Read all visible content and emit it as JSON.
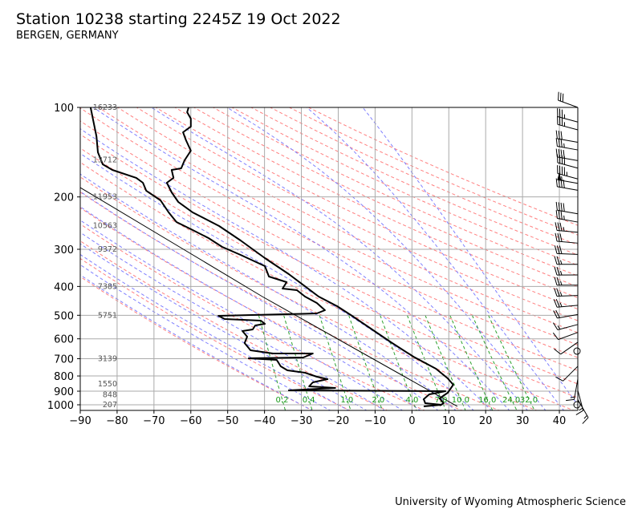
{
  "title": "Station 10238 starting 2245Z 19 Oct 2022",
  "subtitle": "BERGEN, GERMANY",
  "footer": "University of Wyoming Atmospheric Science",
  "chart_data": {
    "type": "line",
    "chart_kind": "skew-T log-P sounding",
    "xlim": [
      -90,
      45
    ],
    "ylim": [
      1050,
      100
    ],
    "y_scale": "log",
    "grid": true,
    "x_ticks": [
      -90,
      -80,
      -70,
      -60,
      -50,
      -40,
      -30,
      -20,
      -10,
      0,
      10,
      20,
      30,
      40
    ],
    "y_ticks": [
      100,
      200,
      300,
      400,
      500,
      600,
      700,
      800,
      900,
      1000
    ],
    "colors": {
      "temperature": "#000000",
      "dewpoint": "#000000",
      "parcel": "#000000",
      "dry_adiabat": "#ff7f7f",
      "moist_adiabat": "#7f7fff",
      "mixing_ratio": "#2ca02c",
      "grid": "#aaaaaa",
      "height_label": "#555555"
    },
    "temperature": [
      [
        100,
        -60.6
      ],
      [
        103.8,
        -61.0
      ],
      [
        109.1,
        -60.0
      ],
      [
        116.0,
        -60.0
      ],
      [
        121.2,
        -62.1
      ],
      [
        129.0,
        -61.3
      ],
      [
        139.8,
        -60.0
      ],
      [
        150.6,
        -61.7
      ],
      [
        160.3,
        -62.6
      ],
      [
        162.3,
        -65.2
      ],
      [
        172.6,
        -64.7
      ],
      [
        179.2,
        -66.5
      ],
      [
        193.1,
        -65.2
      ],
      [
        208.0,
        -63.4
      ],
      [
        225.5,
        -59.5
      ],
      [
        250.5,
        -52.3
      ],
      [
        280.2,
        -46.5
      ],
      [
        321.2,
        -39.9
      ],
      [
        363.6,
        -33.4
      ],
      [
        432.7,
        -25.3
      ],
      [
        466.1,
        -20.3
      ],
      [
        499.0,
        -16.6
      ],
      [
        616.3,
        -5.7
      ],
      [
        689.1,
        0.4
      ],
      [
        756.4,
        6.5
      ],
      [
        814.9,
        9.7
      ],
      [
        856.4,
        11.2
      ],
      [
        911.2,
        9.7
      ],
      [
        951.7,
        7.5
      ],
      [
        987.7,
        8.6
      ],
      [
        1006.2,
        7.5
      ]
    ],
    "dewpoint": [
      [
        100,
        -87.2
      ],
      [
        110.4,
        -86.5
      ],
      [
        125.0,
        -85.6
      ],
      [
        141.6,
        -85.2
      ],
      [
        155.4,
        -83.9
      ],
      [
        162.3,
        -81.3
      ],
      [
        172.6,
        -74.8
      ],
      [
        179.2,
        -73.0
      ],
      [
        190.6,
        -72.1
      ],
      [
        205.4,
        -68.2
      ],
      [
        225.5,
        -66.0
      ],
      [
        242.9,
        -63.9
      ],
      [
        258.5,
        -59.5
      ],
      [
        275.0,
        -55.2
      ],
      [
        294.4,
        -51.5
      ],
      [
        313.3,
        -46.5
      ],
      [
        341.8,
        -39.9
      ],
      [
        370.5,
        -38.8
      ],
      [
        386.9,
        -34.0
      ],
      [
        406.6,
        -35.1
      ],
      [
        411.7,
        -31.2
      ],
      [
        432.7,
        -29.0
      ],
      [
        454.7,
        -25.8
      ],
      [
        480.8,
        -23.6
      ],
      [
        492.9,
        -25.8
      ],
      [
        502.2,
        -52.5
      ],
      [
        514.8,
        -50.8
      ],
      [
        521.2,
        -41.0
      ],
      [
        534.3,
        -39.9
      ],
      [
        541.0,
        -42.5
      ],
      [
        558.0,
        -43.2
      ],
      [
        565.0,
        -46.0
      ],
      [
        590.1,
        -44.7
      ],
      [
        620.2,
        -45.4
      ],
      [
        655.8,
        -43.8
      ],
      [
        672.3,
        -37.7
      ],
      [
        672.3,
        -26.9
      ],
      [
        693.4,
        -29.5
      ],
      [
        697.8,
        -44.3
      ],
      [
        706.5,
        -36.7
      ],
      [
        742.4,
        -35.6
      ],
      [
        765.8,
        -33.8
      ],
      [
        780.2,
        -29.0
      ],
      [
        804.8,
        -25.8
      ],
      [
        820.0,
        -22.9
      ],
      [
        840.6,
        -26.9
      ],
      [
        867.1,
        -27.9
      ],
      [
        877.9,
        -20.8
      ],
      [
        894.4,
        -33.4
      ],
      [
        899.9,
        9.1
      ],
      [
        922.5,
        4.7
      ],
      [
        957.6,
        3.2
      ],
      [
        987.7,
        3.6
      ],
      [
        1000,
        8.0
      ],
      [
        1012.5,
        3.2
      ]
    ],
    "parcel": [
      [
        186,
        -90
      ],
      [
        300,
        -62.0
      ],
      [
        432.7,
        -40.6
      ],
      [
        1012,
        12.3
      ]
    ],
    "height_labels": [
      {
        "p": 100,
        "text": "16233"
      },
      {
        "p": 150,
        "text": "13712"
      },
      {
        "p": 200,
        "text": "11953"
      },
      {
        "p": 250,
        "text": "10563"
      },
      {
        "p": 300,
        "text": "9372"
      },
      {
        "p": 400,
        "text": "7385"
      },
      {
        "p": 500,
        "text": "5751"
      },
      {
        "p": 700,
        "text": "3139"
      },
      {
        "p": 850,
        "text": "1550"
      },
      {
        "p": 925,
        "text": "848"
      },
      {
        "p": 1000,
        "text": "207"
      }
    ],
    "mixing_ratio_lines": [
      {
        "w": 0.2,
        "label": "0.2"
      },
      {
        "w": 0.4,
        "label": "0.4"
      },
      {
        "w": 1.0,
        "label": "1.0"
      },
      {
        "w": 2.0,
        "label": "2.0"
      },
      {
        "w": 4.0,
        "label": "4.0"
      },
      {
        "w": 7.0,
        "label": "7.0"
      },
      {
        "w": 10.0,
        "label": "10.0"
      },
      {
        "w": 16.0,
        "label": "16.0"
      },
      {
        "w": 24.0,
        "label": "24.0"
      },
      {
        "w": 32.0,
        "label": "32.0"
      }
    ],
    "dry_adiabats_t0_at_1000": [
      -30,
      -20,
      -10,
      0,
      10,
      20,
      30,
      40,
      50,
      60,
      70,
      80,
      90,
      100,
      110,
      120,
      130,
      140,
      150,
      160,
      170,
      180,
      190,
      200
    ],
    "moist_adiabats_t0_at_1000": [
      -30,
      -25,
      -20,
      -15,
      -10,
      -5,
      0,
      5,
      10,
      15,
      20,
      25,
      30,
      35,
      40,
      45
    ],
    "wind_barbs": [
      {
        "p": 100,
        "dir": 290,
        "kt": 30
      },
      {
        "p": 112,
        "dir": 285,
        "kt": 35
      },
      {
        "p": 119,
        "dir": 285,
        "kt": 35
      },
      {
        "p": 131,
        "dir": 280,
        "kt": 30
      },
      {
        "p": 139,
        "dir": 280,
        "kt": 35
      },
      {
        "p": 151,
        "dir": 280,
        "kt": 40
      },
      {
        "p": 160,
        "dir": 285,
        "kt": 40
      },
      {
        "p": 174,
        "dir": 285,
        "kt": 45
      },
      {
        "p": 180,
        "dir": 280,
        "kt": 55
      },
      {
        "p": 190,
        "dir": 280,
        "kt": 40
      },
      {
        "p": 228,
        "dir": 280,
        "kt": 40
      },
      {
        "p": 243,
        "dir": 280,
        "kt": 35
      },
      {
        "p": 263,
        "dir": 275,
        "kt": 35
      },
      {
        "p": 286,
        "dir": 275,
        "kt": 30
      },
      {
        "p": 312,
        "dir": 272,
        "kt": 30
      },
      {
        "p": 337,
        "dir": 270,
        "kt": 25
      },
      {
        "p": 366,
        "dir": 270,
        "kt": 25
      },
      {
        "p": 396,
        "dir": 270,
        "kt": 25
      },
      {
        "p": 429,
        "dir": 268,
        "kt": 25
      },
      {
        "p": 463,
        "dir": 265,
        "kt": 25
      },
      {
        "p": 497,
        "dir": 260,
        "kt": 20
      },
      {
        "p": 537,
        "dir": 255,
        "kt": 15
      },
      {
        "p": 571,
        "dir": 250,
        "kt": 10
      },
      {
        "p": 616,
        "dir": 235,
        "kt": 10
      },
      {
        "p": 660,
        "dir": 0,
        "kt": 0
      },
      {
        "p": 742,
        "dir": 225,
        "kt": 10
      },
      {
        "p": 819,
        "dir": 190,
        "kt": 15
      },
      {
        "p": 894,
        "dir": 165,
        "kt": 15
      },
      {
        "p": 960,
        "dir": 150,
        "kt": 15
      },
      {
        "p": 1000,
        "dir": 0,
        "kt": 0
      }
    ]
  }
}
